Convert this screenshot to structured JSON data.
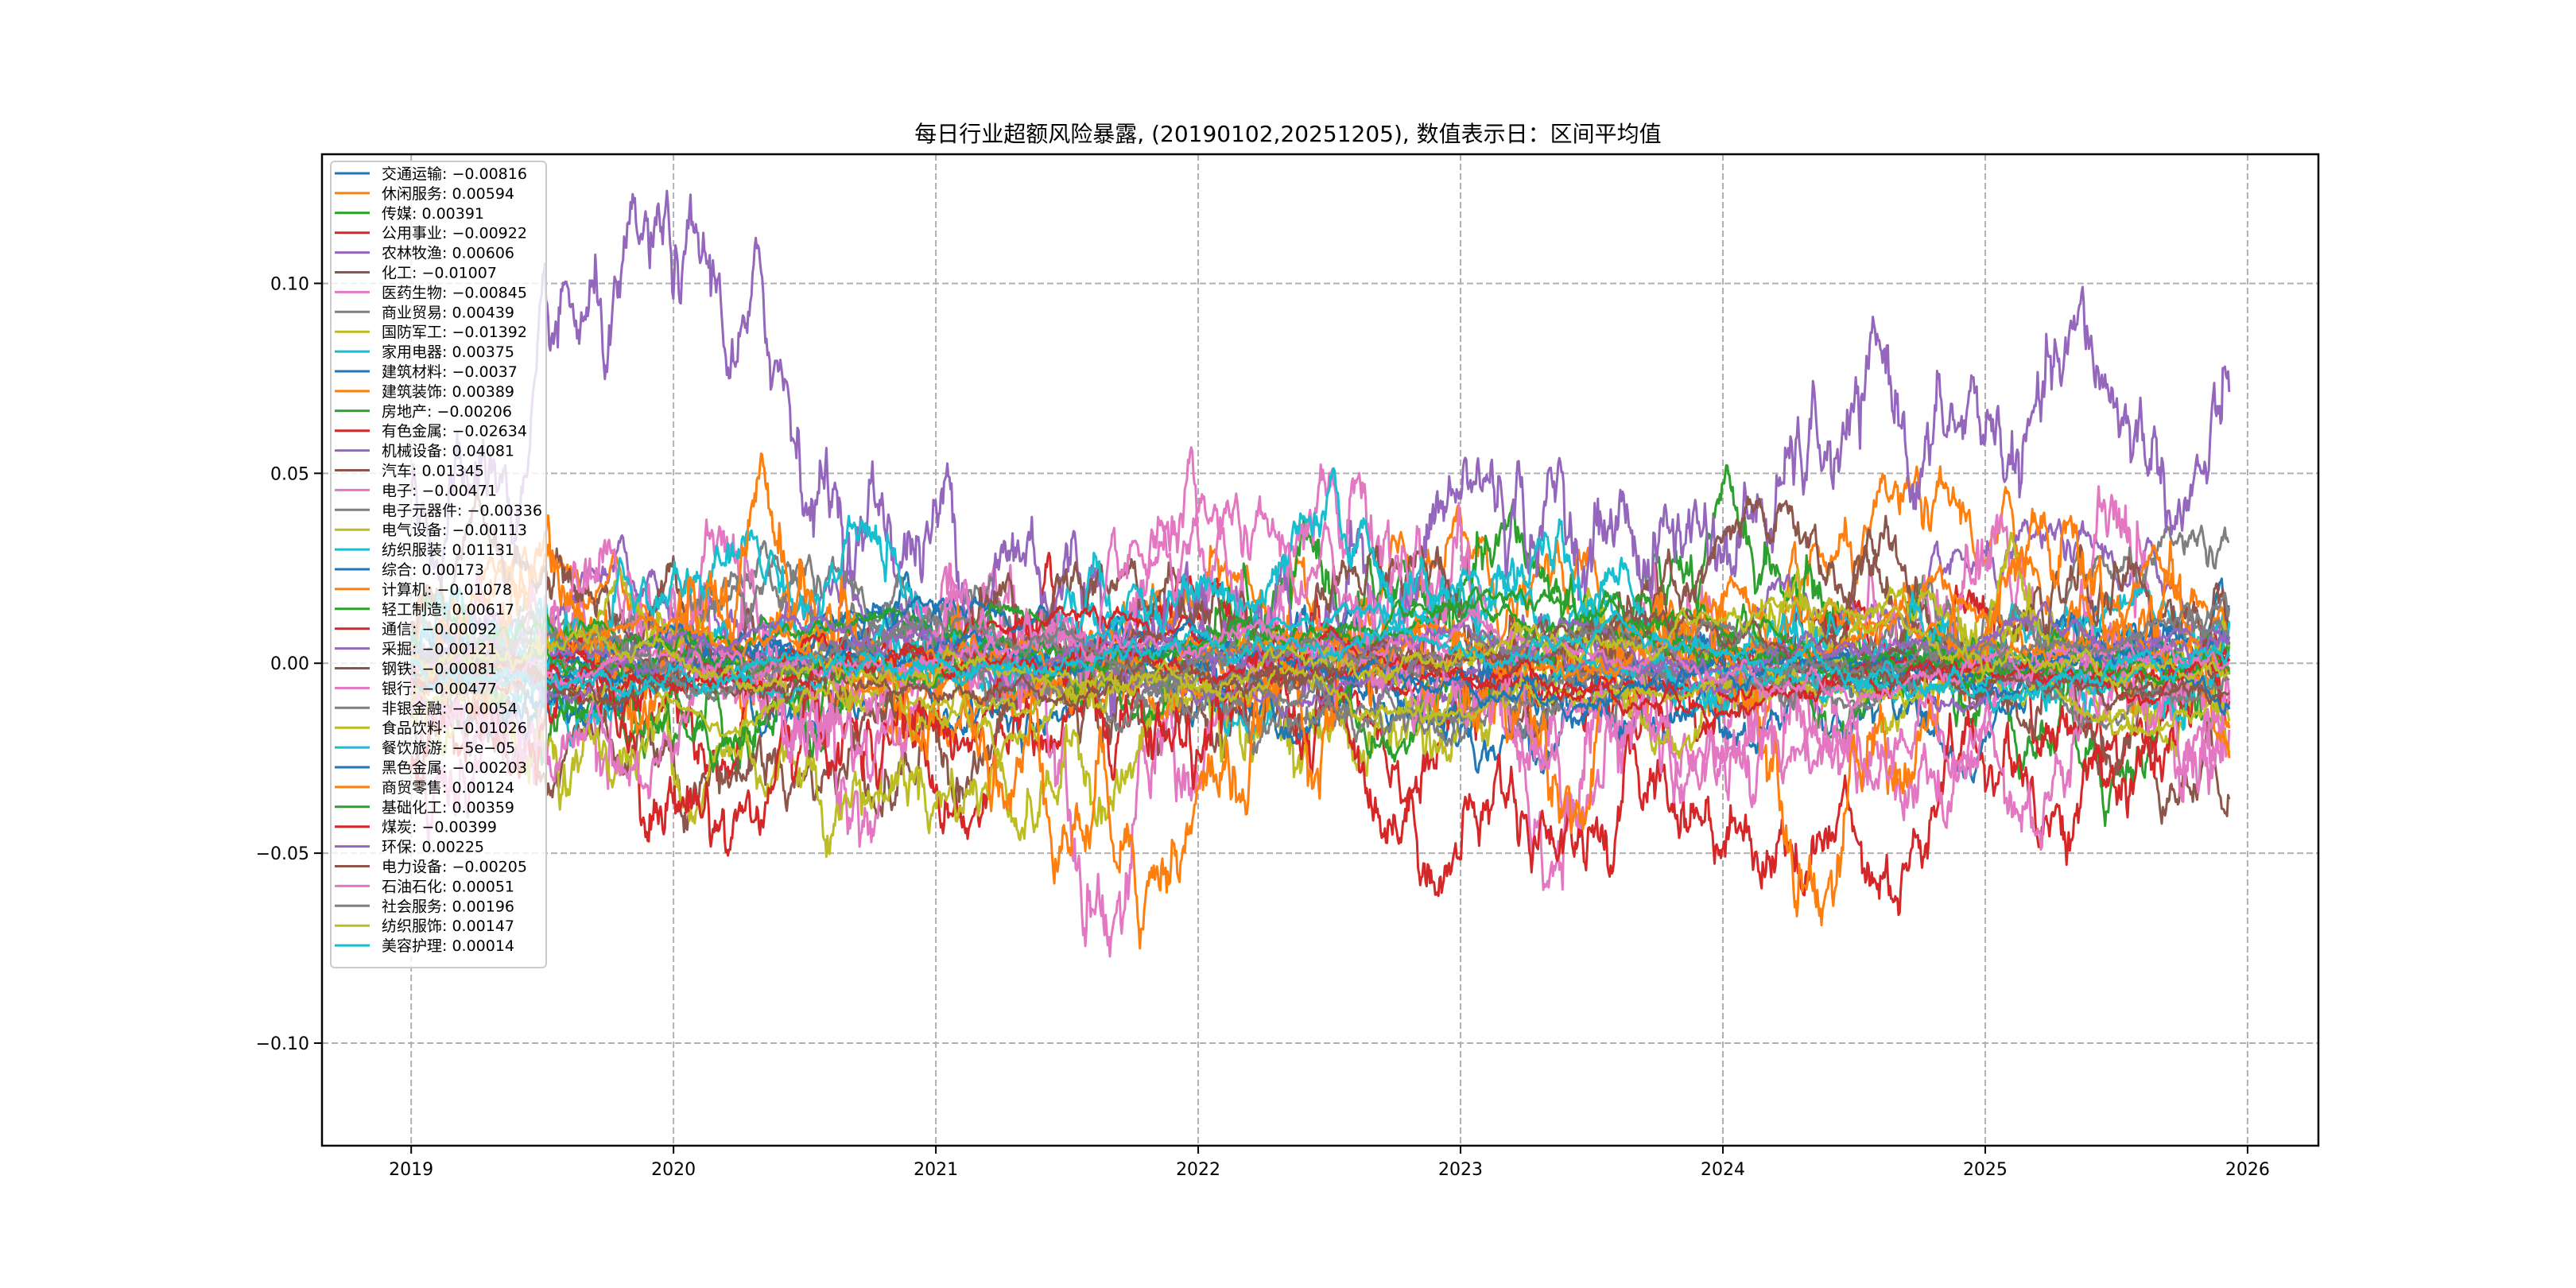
{
  "chart_data": {
    "type": "line",
    "title": "每日行业超额风险暴露, (20190102,20251205),  数值表示日：区间平均值",
    "xlabel": "",
    "ylabel": "",
    "xlim": [
      2018.66,
      2026.27
    ],
    "ylim": [
      -0.127,
      0.134
    ],
    "x_ticks": [
      "2019",
      "2020",
      "2021",
      "2022",
      "2023",
      "2024",
      "2025",
      "2026"
    ],
    "y_ticks": [
      "−0.10",
      "−0.05",
      "0.00",
      "0.05",
      "0.10"
    ],
    "y_tick_values": [
      -0.1,
      -0.05,
      0.0,
      0.05,
      0.1
    ],
    "date_range": [
      "20190102",
      "20251205"
    ],
    "grid": true,
    "legend_position": "top-left",
    "colors": [
      "#1f77b4",
      "#ff7f0e",
      "#2ca02c",
      "#d62728",
      "#9467bd",
      "#8c564b",
      "#e377c2",
      "#7f7f7f",
      "#bcbd22",
      "#17becf"
    ],
    "series": [
      {
        "name": "交通运输",
        "mean": -0.00816,
        "label": "交通运输: −0.00816"
      },
      {
        "name": "休闲服务",
        "mean": 0.00594,
        "label": "休闲服务: 0.00594"
      },
      {
        "name": "传媒",
        "mean": 0.00391,
        "label": "传媒: 0.00391"
      },
      {
        "name": "公用事业",
        "mean": -0.00922,
        "label": "公用事业: −0.00922"
      },
      {
        "name": "农林牧渔",
        "mean": 0.00606,
        "label": "农林牧渔: 0.00606"
      },
      {
        "name": "化工",
        "mean": -0.01007,
        "label": "化工: −0.01007"
      },
      {
        "name": "医药生物",
        "mean": -0.00845,
        "label": "医药生物: −0.00845"
      },
      {
        "name": "商业贸易",
        "mean": 0.00439,
        "label": "商业贸易: 0.00439"
      },
      {
        "name": "国防军工",
        "mean": -0.01392,
        "label": "国防军工: −0.01392"
      },
      {
        "name": "家用电器",
        "mean": 0.00375,
        "label": "家用电器: 0.00375"
      },
      {
        "name": "建筑材料",
        "mean": -0.0037,
        "label": "建筑材料: −0.0037"
      },
      {
        "name": "建筑装饰",
        "mean": 0.00389,
        "label": "建筑装饰: 0.00389"
      },
      {
        "name": "房地产",
        "mean": -0.00206,
        "label": "房地产: −0.00206"
      },
      {
        "name": "有色金属",
        "mean": -0.02634,
        "label": "有色金属: −0.02634"
      },
      {
        "name": "机械设备",
        "mean": 0.04081,
        "label": "机械设备: 0.04081"
      },
      {
        "name": "汽车",
        "mean": 0.01345,
        "label": "汽车: 0.01345"
      },
      {
        "name": "电子",
        "mean": -0.00471,
        "label": "电子: −0.00471"
      },
      {
        "name": "电子元器件",
        "mean": -0.00336,
        "label": "电子元器件: −0.00336"
      },
      {
        "name": "电气设备",
        "mean": -0.00113,
        "label": "电气设备: −0.00113"
      },
      {
        "name": "纺织服装",
        "mean": 0.01131,
        "label": "纺织服装: 0.01131"
      },
      {
        "name": "综合",
        "mean": 0.00173,
        "label": "综合: 0.00173"
      },
      {
        "name": "计算机",
        "mean": -0.01078,
        "label": "计算机: −0.01078"
      },
      {
        "name": "轻工制造",
        "mean": 0.00617,
        "label": "轻工制造: 0.00617"
      },
      {
        "name": "通信",
        "mean": -0.00092,
        "label": "通信: −0.00092"
      },
      {
        "name": "采掘",
        "mean": -0.00121,
        "label": "采掘: −0.00121"
      },
      {
        "name": "钢铁",
        "mean": -0.00081,
        "label": "钢铁: −0.00081"
      },
      {
        "name": "银行",
        "mean": -0.00477,
        "label": "银行: −0.00477"
      },
      {
        "name": "非银金融",
        "mean": -0.0054,
        "label": "非银金融: −0.0054"
      },
      {
        "name": "食品饮料",
        "mean": -0.01026,
        "label": "食品饮料: −0.01026"
      },
      {
        "name": "餐饮旅游",
        "mean": -5e-05,
        "label": "餐饮旅游: −5e−05"
      },
      {
        "name": "黑色金属",
        "mean": -0.00203,
        "label": "黑色金属: −0.00203"
      },
      {
        "name": "商贸零售",
        "mean": 0.00124,
        "label": "商贸零售: 0.00124"
      },
      {
        "name": "基础化工",
        "mean": 0.00359,
        "label": "基础化工: 0.00359"
      },
      {
        "name": "煤炭",
        "mean": -0.00399,
        "label": "煤炭: −0.00399"
      },
      {
        "name": "环保",
        "mean": 0.00225,
        "label": "环保: 0.00225"
      },
      {
        "name": "电力设备",
        "mean": -0.00205,
        "label": "电力设备: −0.00205"
      },
      {
        "name": "石油石化",
        "mean": 0.00051,
        "label": "石油石化: 0.00051"
      },
      {
        "name": "社会服务",
        "mean": 0.00196,
        "label": "社会服务: 0.00196"
      },
      {
        "name": "纺织服饰",
        "mean": 0.00147,
        "label": "纺织服饰: 0.00147"
      },
      {
        "name": "美容护理",
        "mean": 0.00014,
        "label": "美容护理: 0.00014"
      }
    ]
  }
}
